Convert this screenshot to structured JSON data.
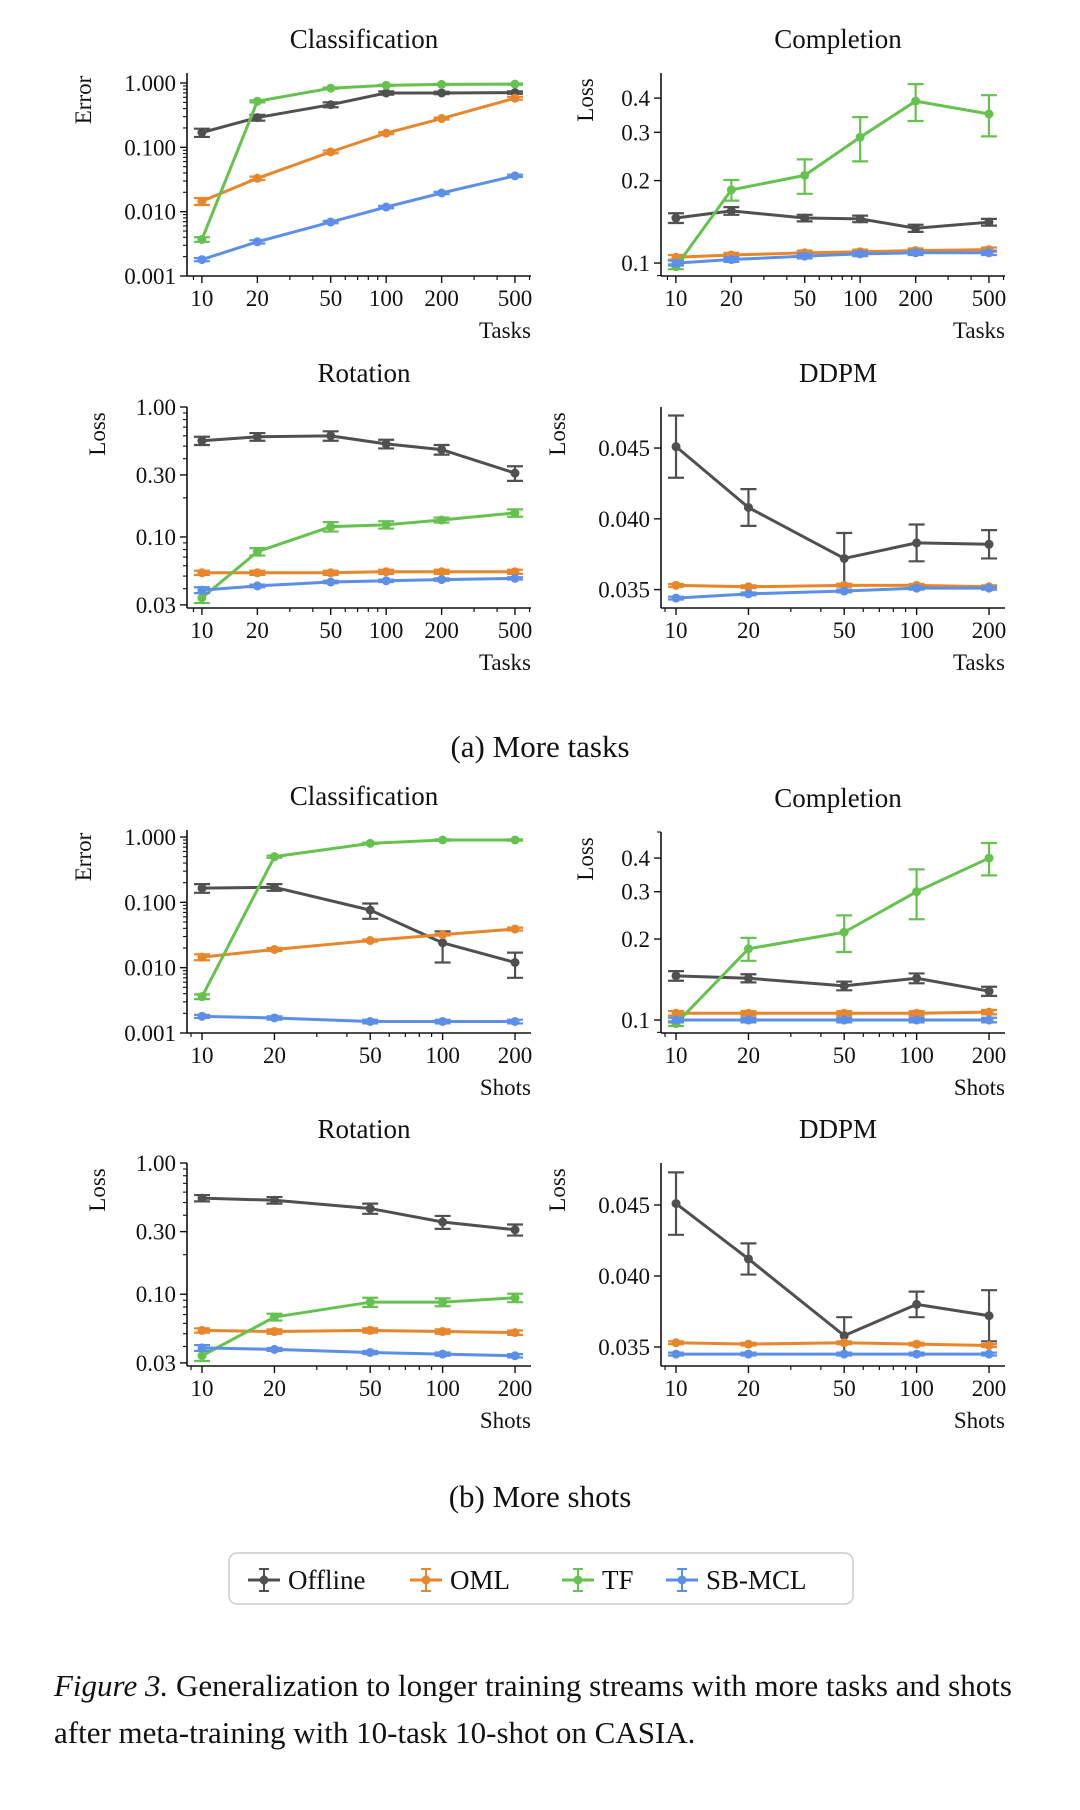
{
  "chart_data": [
    {
      "type": "line",
      "group": "a",
      "title": "Classification",
      "xlabel": "Tasks",
      "ylabel": "Error",
      "xscale": "log",
      "yscale": "log",
      "x": [
        10,
        20,
        50,
        100,
        200,
        500
      ],
      "xticks": [
        10,
        20,
        50,
        100,
        200,
        500
      ],
      "xticklabels": [
        "10",
        "20",
        "50",
        "100",
        "200",
        "500"
      ],
      "xlim": [
        8.3,
        611
      ],
      "yticks": [
        0.001,
        0.01,
        0.1,
        1.0
      ],
      "yticklabels": [
        "0.001",
        "0.010",
        "0.100",
        "1.000"
      ],
      "ylim": [
        0.001,
        1.43
      ],
      "series": [
        {
          "name": "Offline",
          "values": [
            0.17,
            0.29,
            0.46,
            0.7,
            0.7,
            0.71
          ],
          "yerr": [
            0.025,
            0.03,
            0.04,
            0.04,
            0.03,
            0.03
          ]
        },
        {
          "name": "OML",
          "values": [
            0.0145,
            0.033,
            0.085,
            0.166,
            0.28,
            0.58
          ],
          "yerr": [
            0.0018,
            0.002,
            0.004,
            0.006,
            0.01,
            0.03
          ]
        },
        {
          "name": "TF",
          "values": [
            0.0037,
            0.52,
            0.83,
            0.92,
            0.95,
            0.96
          ],
          "yerr": [
            0.0003,
            0.02,
            0.02,
            0.02,
            0.02,
            0.02
          ]
        },
        {
          "name": "SB-MCL",
          "values": [
            0.0018,
            0.0034,
            0.0069,
            0.0118,
            0.0195,
            0.036
          ],
          "yerr": [
            0.0001,
            0.0002,
            0.0003,
            0.0005,
            0.0008,
            0.0015
          ]
        }
      ]
    },
    {
      "type": "line",
      "group": "a",
      "title": "Completion",
      "xlabel": "Tasks",
      "ylabel": "Loss",
      "xscale": "log",
      "yscale": "log",
      "x": [
        10,
        20,
        50,
        100,
        200,
        500
      ],
      "xticks": [
        10,
        20,
        50,
        100,
        200,
        500
      ],
      "xticklabels": [
        "10",
        "20",
        "50",
        "100",
        "200",
        "500"
      ],
      "xlim": [
        8.3,
        611
      ],
      "yticks": [
        0.1,
        0.2,
        0.3,
        0.4
      ],
      "yticklabels": [
        "0.1",
        "0.2",
        "0.3",
        "0.4"
      ],
      "ylim": [
        0.0897,
        0.494
      ],
      "series": [
        {
          "name": "Offline",
          "values": [
            0.146,
            0.155,
            0.146,
            0.145,
            0.134,
            0.141
          ],
          "yerr": [
            0.006,
            0.005,
            0.004,
            0.004,
            0.004,
            0.004
          ]
        },
        {
          "name": "OML",
          "values": [
            0.105,
            0.107,
            0.109,
            0.11,
            0.111,
            0.112
          ],
          "yerr": [
            0.002,
            0.002,
            0.002,
            0.002,
            0.002,
            0.002
          ]
        },
        {
          "name": "TF",
          "values": [
            0.097,
            0.185,
            0.209,
            0.288,
            0.39,
            0.35
          ],
          "yerr": [
            0.002,
            0.016,
            0.03,
            0.053,
            0.06,
            0.06
          ]
        },
        {
          "name": "SB-MCL",
          "values": [
            0.1,
            0.103,
            0.106,
            0.108,
            0.109,
            0.109
          ],
          "yerr": [
            0.002,
            0.002,
            0.002,
            0.002,
            0.002,
            0.002
          ]
        }
      ]
    },
    {
      "type": "line",
      "group": "a",
      "title": "Rotation",
      "xlabel": "Tasks",
      "ylabel": "Loss",
      "xscale": "log",
      "yscale": "log",
      "x": [
        10,
        20,
        50,
        100,
        200,
        500
      ],
      "xticks": [
        10,
        20,
        50,
        100,
        200,
        500
      ],
      "xticklabels": [
        "10",
        "20",
        "50",
        "100",
        "200",
        "500"
      ],
      "xlim": [
        8.3,
        611
      ],
      "yticks": [
        0.03,
        0.1,
        0.3,
        1.0
      ],
      "yticklabels": [
        "0.03",
        "0.10",
        "0.30",
        "1.00"
      ],
      "ylim": [
        0.0284,
        1.0
      ],
      "series": [
        {
          "name": "Offline",
          "values": [
            0.55,
            0.59,
            0.6,
            0.52,
            0.47,
            0.31
          ],
          "yerr": [
            0.04,
            0.04,
            0.05,
            0.04,
            0.04,
            0.04
          ]
        },
        {
          "name": "OML",
          "values": [
            0.053,
            0.053,
            0.053,
            0.054,
            0.054,
            0.054
          ],
          "yerr": [
            0.002,
            0.002,
            0.002,
            0.002,
            0.002,
            0.002
          ]
        },
        {
          "name": "TF",
          "values": [
            0.034,
            0.077,
            0.12,
            0.124,
            0.135,
            0.153
          ],
          "yerr": [
            0.003,
            0.005,
            0.01,
            0.008,
            0.006,
            0.01
          ]
        },
        {
          "name": "SB-MCL",
          "values": [
            0.039,
            0.042,
            0.045,
            0.046,
            0.047,
            0.048
          ],
          "yerr": [
            0.002,
            0.001,
            0.001,
            0.001,
            0.001,
            0.001
          ]
        }
      ]
    },
    {
      "type": "line",
      "group": "a",
      "title": "DDPM",
      "xlabel": "Tasks",
      "ylabel": "Loss",
      "xscale": "log",
      "yscale": "linear",
      "x": [
        10,
        20,
        50,
        100,
        200
      ],
      "xticks": [
        10,
        20,
        50,
        100,
        200
      ],
      "xticklabels": [
        "10",
        "20",
        "50",
        "100",
        "200"
      ],
      "xlim": [
        8.66,
        233
      ],
      "yticks": [
        0.035,
        0.04,
        0.045
      ],
      "yticklabels": [
        "0.035",
        "0.040",
        "0.045"
      ],
      "ylim": [
        0.0337,
        0.0479
      ],
      "series": [
        {
          "name": "Offline",
          "values": [
            0.0451,
            0.0408,
            0.0372,
            0.0383,
            0.0382
          ],
          "yerr": [
            0.0022,
            0.0013,
            0.0018,
            0.0013,
            0.001
          ]
        },
        {
          "name": "OML",
          "values": [
            0.0353,
            0.0352,
            0.0353,
            0.0353,
            0.0352
          ],
          "yerr": [
            0.0001,
            0.0001,
            0.0001,
            0.0001,
            0.0001
          ]
        },
        {
          "name": "TF",
          "values": [],
          "yerr": []
        },
        {
          "name": "SB-MCL",
          "values": [
            0.0344,
            0.0347,
            0.0349,
            0.0351,
            0.0351
          ],
          "yerr": [
            0.0001,
            0.0001,
            0.0001,
            0.0001,
            0.0001
          ]
        }
      ]
    },
    {
      "type": "line",
      "group": "b",
      "title": "Classification",
      "xlabel": "Shots",
      "ylabel": "Error",
      "xscale": "log",
      "yscale": "log",
      "x": [
        10,
        20,
        50,
        100,
        200
      ],
      "xticks": [
        10,
        20,
        50,
        100,
        200
      ],
      "xticklabels": [
        "10",
        "20",
        "50",
        "100",
        "200"
      ],
      "xlim": [
        8.66,
        233
      ],
      "yticks": [
        0.001,
        0.01,
        0.1,
        1.0
      ],
      "yticklabels": [
        "0.001",
        "0.010",
        "0.100",
        "1.000"
      ],
      "ylim": [
        0.001,
        1.28
      ],
      "series": [
        {
          "name": "Offline",
          "values": [
            0.165,
            0.17,
            0.076,
            0.024,
            0.012
          ],
          "yerr": [
            0.025,
            0.02,
            0.02,
            0.012,
            0.005
          ]
        },
        {
          "name": "OML",
          "values": [
            0.0145,
            0.019,
            0.026,
            0.032,
            0.039
          ],
          "yerr": [
            0.0015,
            0.001,
            0.001,
            0.001,
            0.002
          ]
        },
        {
          "name": "TF",
          "values": [
            0.0036,
            0.5,
            0.8,
            0.9,
            0.9
          ],
          "yerr": [
            0.0003,
            0.02,
            0.02,
            0.02,
            0.02
          ]
        },
        {
          "name": "SB-MCL",
          "values": [
            0.0018,
            0.0017,
            0.0015,
            0.0015,
            0.0015
          ],
          "yerr": [
            0.0001,
            0.0001,
            0.0001,
            0.0001,
            0.0001
          ]
        }
      ]
    },
    {
      "type": "line",
      "group": "b",
      "title": "Completion",
      "xlabel": "Shots",
      "ylabel": "Loss",
      "xscale": "log",
      "yscale": "log",
      "x": [
        10,
        20,
        50,
        100,
        200
      ],
      "xticks": [
        10,
        20,
        50,
        100,
        200
      ],
      "xticklabels": [
        "10",
        "20",
        "50",
        "100",
        "200"
      ],
      "xlim": [
        8.66,
        233
      ],
      "yticks": [
        0.1,
        0.2,
        0.3,
        0.4
      ],
      "yticklabels": [
        "0.1",
        "0.2",
        "0.3",
        "0.4"
      ],
      "ylim": [
        0.0895,
        0.5
      ],
      "series": [
        {
          "name": "Offline",
          "values": [
            0.146,
            0.143,
            0.134,
            0.143,
            0.128
          ],
          "yerr": [
            0.006,
            0.005,
            0.005,
            0.006,
            0.005
          ]
        },
        {
          "name": "OML",
          "values": [
            0.106,
            0.106,
            0.106,
            0.106,
            0.107
          ],
          "yerr": [
            0.002,
            0.002,
            0.002,
            0.002,
            0.002
          ]
        },
        {
          "name": "TF",
          "values": [
            0.097,
            0.184,
            0.212,
            0.3,
            0.4
          ],
          "yerr": [
            0.002,
            0.018,
            0.033,
            0.063,
            0.055
          ]
        },
        {
          "name": "SB-MCL",
          "values": [
            0.1,
            0.1,
            0.1,
            0.1,
            0.1
          ],
          "yerr": [
            0.002,
            0.002,
            0.002,
            0.002,
            0.002
          ]
        }
      ]
    },
    {
      "type": "line",
      "group": "b",
      "title": "Rotation",
      "xlabel": "Shots",
      "ylabel": "Loss",
      "xscale": "log",
      "yscale": "log",
      "x": [
        10,
        20,
        50,
        100,
        200
      ],
      "xticks": [
        10,
        20,
        50,
        100,
        200
      ],
      "xticklabels": [
        "10",
        "20",
        "50",
        "100",
        "200"
      ],
      "xlim": [
        8.66,
        233
      ],
      "yticks": [
        0.03,
        0.1,
        0.3,
        1.0
      ],
      "yticklabels": [
        "0.03",
        "0.10",
        "0.30",
        "1.00"
      ],
      "ylim": [
        0.0284,
        1.0
      ],
      "series": [
        {
          "name": "Offline",
          "values": [
            0.54,
            0.52,
            0.45,
            0.355,
            0.31
          ],
          "yerr": [
            0.03,
            0.03,
            0.04,
            0.04,
            0.03
          ]
        },
        {
          "name": "OML",
          "values": [
            0.053,
            0.052,
            0.053,
            0.052,
            0.051
          ],
          "yerr": [
            0.002,
            0.002,
            0.002,
            0.002,
            0.002
          ]
        },
        {
          "name": "TF",
          "values": [
            0.034,
            0.067,
            0.087,
            0.087,
            0.094
          ],
          "yerr": [
            0.003,
            0.004,
            0.007,
            0.006,
            0.007
          ]
        },
        {
          "name": "SB-MCL",
          "values": [
            0.039,
            0.038,
            0.036,
            0.035,
            0.034
          ],
          "yerr": [
            0.002,
            0.001,
            0.001,
            0.001,
            0.001
          ]
        }
      ]
    },
    {
      "type": "line",
      "group": "b",
      "title": "DDPM",
      "xlabel": "Shots",
      "ylabel": "Loss",
      "xscale": "log",
      "yscale": "linear",
      "x": [
        10,
        20,
        50,
        100,
        200
      ],
      "xticks": [
        10,
        20,
        50,
        100,
        200
      ],
      "xticklabels": [
        "10",
        "20",
        "50",
        "100",
        "200"
      ],
      "xlim": [
        8.66,
        233
      ],
      "yticks": [
        0.035,
        0.04,
        0.045
      ],
      "yticklabels": [
        "0.035",
        "0.040",
        "0.045"
      ],
      "ylim": [
        0.03366,
        0.04796
      ],
      "series": [
        {
          "name": "Offline",
          "values": [
            0.0451,
            0.0412,
            0.0358,
            0.038,
            0.0372
          ],
          "yerr": [
            0.0022,
            0.0011,
            0.0013,
            0.0009,
            0.0018
          ]
        },
        {
          "name": "OML",
          "values": [
            0.0353,
            0.0352,
            0.0353,
            0.0352,
            0.0351
          ],
          "yerr": [
            0.0001,
            0.0001,
            0.0001,
            0.0001,
            0.0001
          ]
        },
        {
          "name": "TF",
          "values": [],
          "yerr": []
        },
        {
          "name": "SB-MCL",
          "values": [
            0.0345,
            0.0345,
            0.0345,
            0.0345,
            0.0345
          ],
          "yerr": [
            0.0001,
            0.0001,
            0.0001,
            0.0001,
            0.0001
          ]
        }
      ]
    }
  ],
  "series_colors": {
    "Offline": "#505050",
    "OML": "#e8862b",
    "TF": "#66c24f",
    "SB-MCL": "#5b8fe8"
  },
  "subcaptions": {
    "a": "(a) More tasks",
    "b": "(b) More shots"
  },
  "legend": {
    "placement": "bottom-center",
    "entries": [
      "Offline",
      "OML",
      "TF",
      "SB-MCL"
    ]
  },
  "caption": {
    "label": "Figure 3.",
    "text": " Generalization to longer training streams with more tasks and shots after meta-training with 10-task 10-shot on CASIA."
  }
}
